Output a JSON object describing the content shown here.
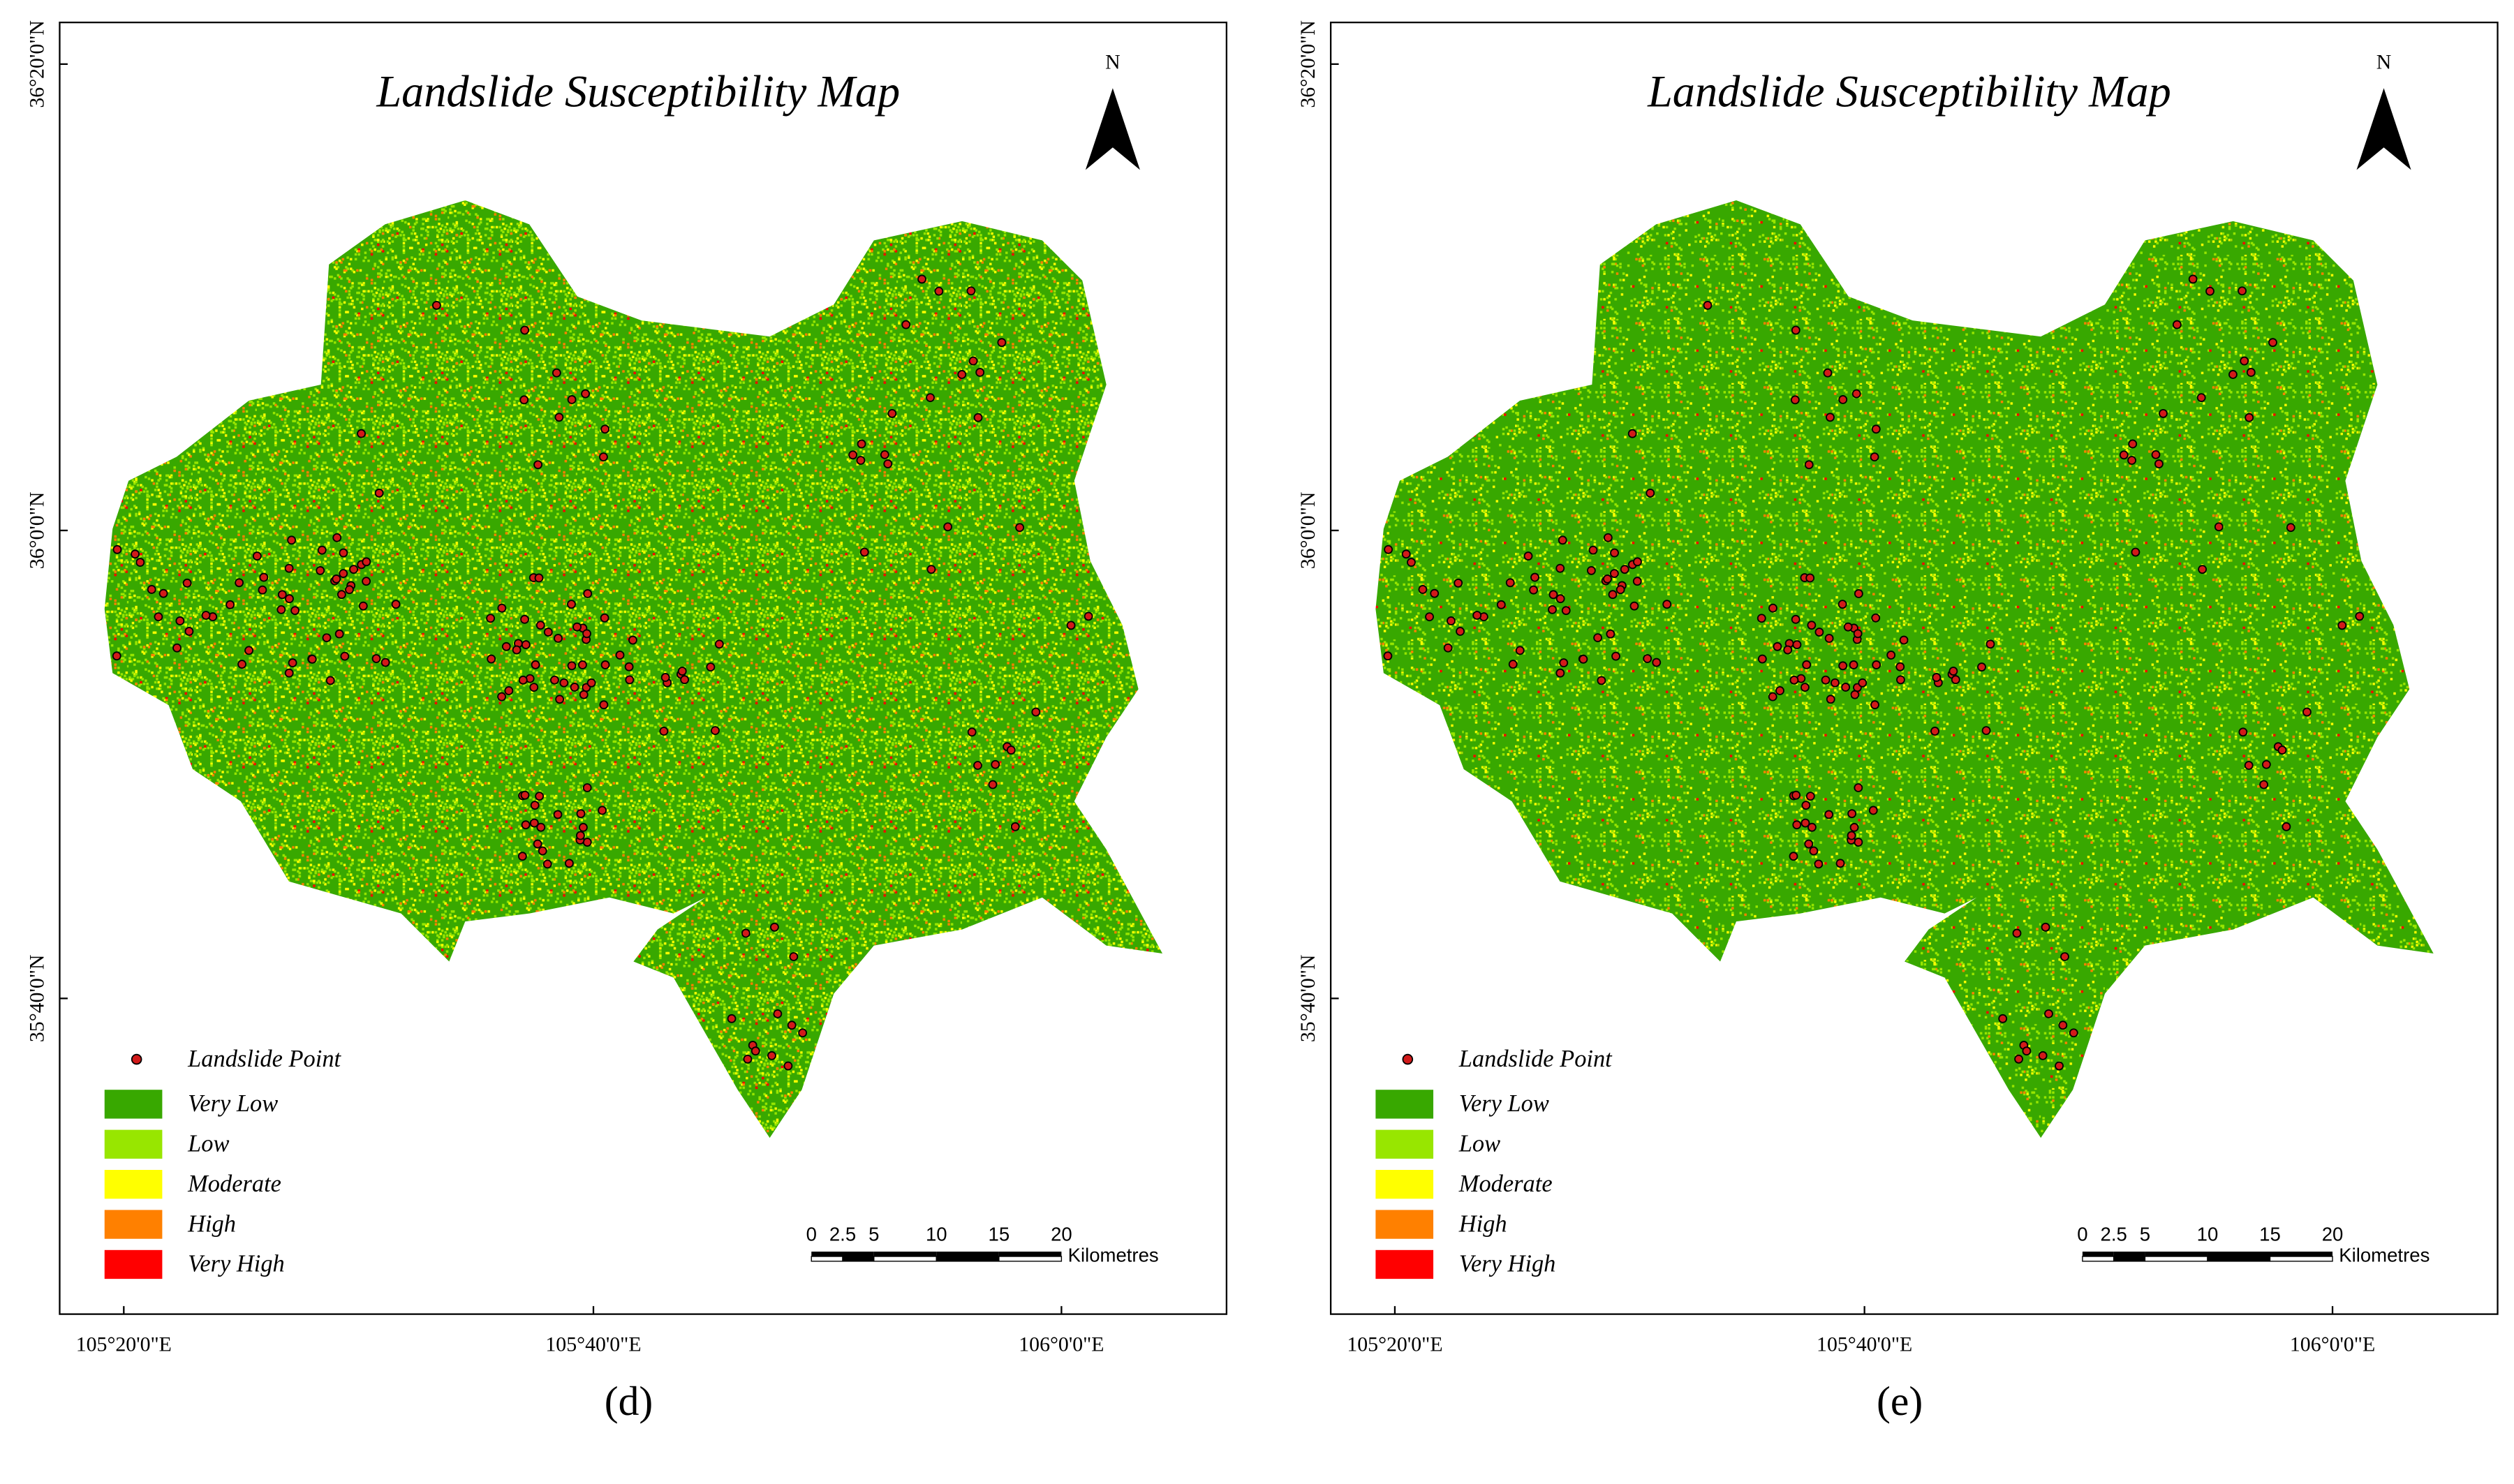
{
  "panels": [
    {
      "title": "Landslide Susceptibility Map",
      "north": "N",
      "lat_labels": [
        "36°20'0\"N",
        "36°0'0\"N",
        "35°40'0\"N"
      ],
      "lon_labels": [
        "105°20'0\"E",
        "105°40'0\"E",
        "106°0'0\"E"
      ],
      "legend": {
        "point": "Landslide Point",
        "classes": [
          {
            "label": "Very Low",
            "color": "#38a800"
          },
          {
            "label": "Low",
            "color": "#98e600"
          },
          {
            "label": "Moderate",
            "color": "#ffff00"
          },
          {
            "label": "High",
            "color": "#ff8000"
          },
          {
            "label": "Very High",
            "color": "#ff0000"
          }
        ]
      },
      "scale_bar": {
        "ticks": [
          0,
          2.5,
          5,
          10,
          15,
          20
        ],
        "unit": "Kilometres"
      },
      "label": "(d)"
    },
    {
      "title": "Landslide Susceptibility Map",
      "north": "N",
      "lat_labels": [
        "36°20'0\"N",
        "36°0'0\"N",
        "35°40'0\"N"
      ],
      "lon_labels": [
        "105°20'0\"E",
        "105°40'0\"E",
        "106°0'0\"E"
      ],
      "legend": {
        "point": "Landslide Point",
        "classes": [
          {
            "label": "Very Low",
            "color": "#38a800"
          },
          {
            "label": "Low",
            "color": "#98e600"
          },
          {
            "label": "Moderate",
            "color": "#ffff00"
          },
          {
            "label": "High",
            "color": "#ff8000"
          },
          {
            "label": "Very High",
            "color": "#ff0000"
          }
        ]
      },
      "scale_bar": {
        "ticks": [
          0,
          2.5,
          5,
          10,
          15,
          20
        ],
        "unit": "Kilometres"
      },
      "label": "(e)"
    }
  ]
}
